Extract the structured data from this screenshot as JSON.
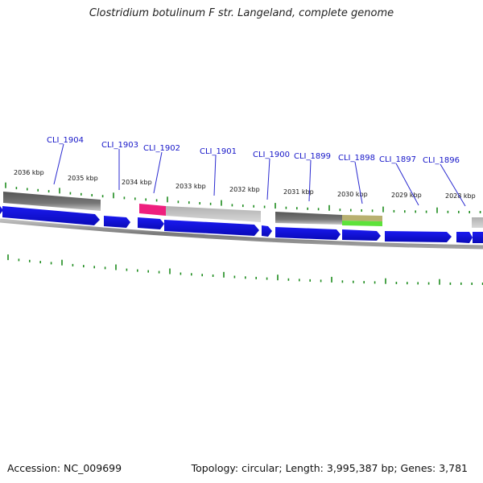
{
  "title": "Clostridium botulinum F str. Langeland, complete genome",
  "accession_label": "Accession: NC_009699",
  "summary": "Topology: circular; Length: 3,995,387 bp; Genes: 3,781",
  "colors": {
    "cds": "#1414e6",
    "backbone": "#8a8a8a",
    "tick": "#1e8c1e",
    "label_line": "#2a2ad0",
    "feature_dark": "#666666",
    "feature_light": "#bdbdbd",
    "feature_pink": "#ee1f7e",
    "feature_olive": "#b8b070",
    "feature_green": "#5de23a"
  },
  "kbp_labels": [
    "2036 kbp",
    "2035 kbp",
    "2034 kbp",
    "2033 kbp",
    "2032 kbp",
    "2031 kbp",
    "2030 kbp",
    "2029 kbp",
    "2028 kbp"
  ],
  "gene_labels": [
    "CLI_1904",
    "CLI_1903",
    "CLI_1902",
    "CLI_1901",
    "CLI_1900",
    "CLI_1899",
    "CLI_1898",
    "CLI_1897",
    "CLI_1896"
  ]
}
